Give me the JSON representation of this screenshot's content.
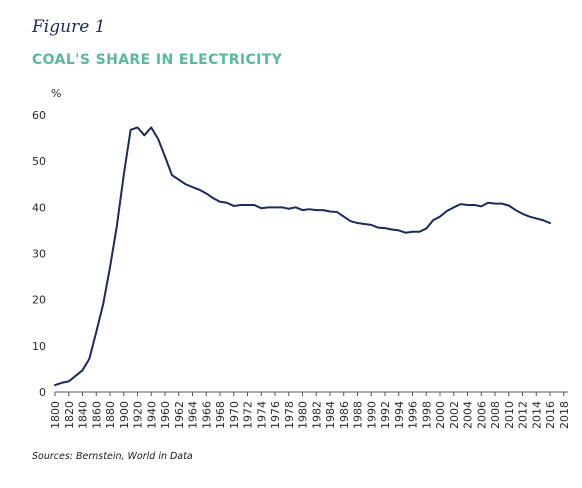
{
  "figure_label": "Figure 1",
  "source": "Sources: Bernstein, World in Data",
  "colors": {
    "title": "#58b9a2",
    "line": "#1c2a5c",
    "axis": "#555555"
  },
  "chart_data": {
    "type": "line",
    "title": "COAL'S SHARE IN ELECTRICITY",
    "ylabel": "%",
    "xlabel": "",
    "ylim": [
      0,
      60
    ],
    "yticks": [
      0,
      10,
      20,
      30,
      40,
      50,
      60
    ],
    "categories": [
      "1800",
      "1820",
      "1840",
      "1860",
      "1880",
      "1900",
      "1920",
      "1940",
      "1960",
      "1962",
      "1964",
      "1966",
      "1968",
      "1970",
      "1972",
      "1974",
      "1976",
      "1978",
      "1980",
      "1982",
      "1984",
      "1986",
      "1988",
      "1990",
      "1992",
      "1994",
      "1996",
      "1998",
      "2000",
      "2002",
      "2004",
      "2006",
      "2008",
      "2010",
      "2012",
      "2014",
      "2016",
      "2018"
    ],
    "grid": false,
    "series": [
      {
        "values": [
          [
            0,
            1.5
          ],
          [
            0.5,
            2
          ],
          [
            1,
            2.3
          ],
          [
            1.5,
            3.5
          ],
          [
            2,
            4.7
          ],
          [
            2.5,
            7.2
          ],
          [
            3,
            13
          ],
          [
            3.5,
            19
          ],
          [
            4,
            27
          ],
          [
            4.5,
            36
          ],
          [
            5,
            47
          ],
          [
            5.5,
            56.8
          ],
          [
            6,
            57.3
          ],
          [
            6.5,
            55.6
          ],
          [
            7,
            57.3
          ],
          [
            7.5,
            54.8
          ],
          [
            8,
            51
          ],
          [
            8.5,
            47
          ],
          [
            9,
            46
          ],
          [
            9.5,
            45
          ],
          [
            10,
            44.4
          ],
          [
            10.5,
            43.8
          ],
          [
            11,
            43
          ],
          [
            11.5,
            42
          ],
          [
            12,
            41.2
          ],
          [
            12.5,
            41
          ],
          [
            13,
            40.3
          ],
          [
            13.5,
            40.5
          ],
          [
            14,
            40.5
          ],
          [
            14.5,
            40.5
          ],
          [
            15,
            39.8
          ],
          [
            15.5,
            40
          ],
          [
            16,
            40
          ],
          [
            16.5,
            40
          ],
          [
            17,
            39.7
          ],
          [
            17.5,
            40
          ],
          [
            18,
            39.4
          ],
          [
            18.5,
            39.6
          ],
          [
            19,
            39.4
          ],
          [
            19.5,
            39.4
          ],
          [
            20,
            39.1
          ],
          [
            20.5,
            39
          ],
          [
            21,
            38
          ],
          [
            21.5,
            37
          ],
          [
            22,
            36.6
          ],
          [
            22.5,
            36.4
          ],
          [
            23,
            36.2
          ],
          [
            23.5,
            35.6
          ],
          [
            24,
            35.5
          ],
          [
            24.5,
            35.2
          ],
          [
            25,
            35
          ],
          [
            25.5,
            34.5
          ],
          [
            26,
            34.7
          ],
          [
            26.5,
            34.7
          ],
          [
            27,
            35.4
          ],
          [
            27.5,
            37.2
          ],
          [
            28,
            38
          ],
          [
            28.5,
            39.2
          ],
          [
            29,
            40
          ],
          [
            29.5,
            40.7
          ],
          [
            30,
            40.5
          ],
          [
            30.5,
            40.5
          ],
          [
            31,
            40.2
          ],
          [
            31.5,
            41
          ],
          [
            32,
            40.8
          ],
          [
            32.5,
            40.8
          ],
          [
            33,
            40.4
          ],
          [
            33.5,
            39.4
          ],
          [
            34,
            38.6
          ],
          [
            34.5,
            38
          ],
          [
            35,
            37.6
          ],
          [
            35.5,
            37.2
          ],
          [
            36,
            36.6
          ]
        ]
      }
    ]
  }
}
